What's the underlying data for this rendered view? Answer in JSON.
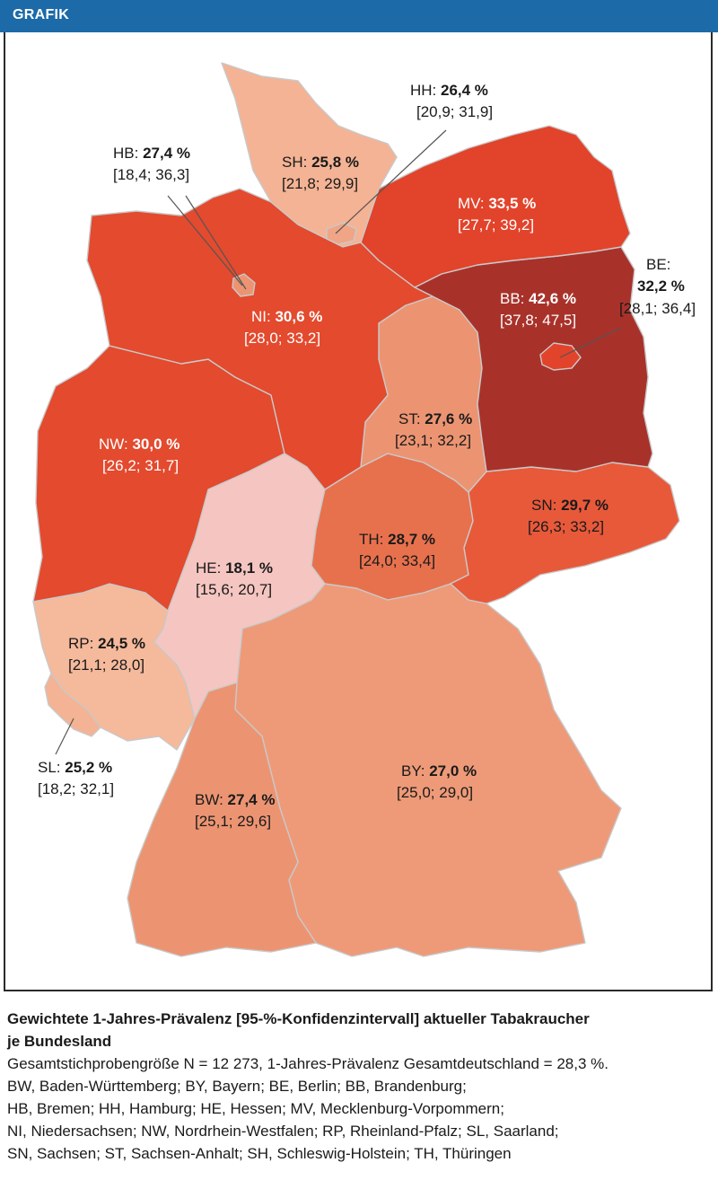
{
  "header": {
    "label": "GRAFIK"
  },
  "colors": {
    "header": "#1c6aa8",
    "scale_lightest": "#f5c6c1",
    "scale_light": "#f4b394",
    "scale_mid": "#ec9472",
    "scale_midhigh": "#e8714d",
    "scale_high": "#e34a2e",
    "scale_highest": "#a8322a"
  },
  "regions": [
    {
      "code": "SH",
      "prefix": "SH: ",
      "value": "25,8 %",
      "ci": "[21,8; 29,9]",
      "color": "#f4b394",
      "text_color": "#1a1a1a"
    },
    {
      "code": "HH",
      "prefix": "HH: ",
      "value": "26,4 %",
      "ci": "[20,9; 31,9]",
      "color": "#f0a586",
      "text_color": "#1a1a1a"
    },
    {
      "code": "MV",
      "prefix": "MV: ",
      "value": "33,5 %",
      "ci": "[27,7; 39,2]",
      "color": "#e2432b",
      "text_color": "#ffffff"
    },
    {
      "code": "HB",
      "prefix": "HB: ",
      "value": "27,4 %",
      "ci": "[18,4; 36,3]",
      "color": "#ec9472",
      "text_color": "#1a1a1a"
    },
    {
      "code": "NI",
      "prefix": "NI: ",
      "value": "30,6 %",
      "ci": "[28,0; 33,2]",
      "color": "#e34a2e",
      "text_color": "#ffffff"
    },
    {
      "code": "BB",
      "prefix": "BB: ",
      "value": "42,6 %",
      "ci": "[37,8; 47,5]",
      "color": "#a8322a",
      "text_color": "#ffffff"
    },
    {
      "code": "BE",
      "prefix": "BE:",
      "value": "32,2 %",
      "ci": "[28,1; 36,4]",
      "color": "#e2432b",
      "text_color": "#1a1a1a"
    },
    {
      "code": "ST",
      "prefix": "ST: ",
      "value": "27,6 %",
      "ci": "[23,1; 32,2]",
      "color": "#ec9472",
      "text_color": "#1a1a1a"
    },
    {
      "code": "NW",
      "prefix": "NW: ",
      "value": "30,0 %",
      "ci": "[26,2; 31,7]",
      "color": "#e34a2e",
      "text_color": "#ffffff"
    },
    {
      "code": "SN",
      "prefix": "SN: ",
      "value": "29,7 %",
      "ci": "[26,3; 33,2]",
      "color": "#e8593a",
      "text_color": "#1a1a1a"
    },
    {
      "code": "TH",
      "prefix": "TH: ",
      "value": "28,7 %",
      "ci": "[24,0; 33,4]",
      "color": "#e8714d",
      "text_color": "#1a1a1a"
    },
    {
      "code": "HE",
      "prefix": "HE: ",
      "value": "18,1 %",
      "ci": "[15,6; 20,7]",
      "color": "#f5c6c1",
      "text_color": "#1a1a1a"
    },
    {
      "code": "RP",
      "prefix": "RP: ",
      "value": "24,5 %",
      "ci": "[21,1; 28,0]",
      "color": "#f5b99b",
      "text_color": "#1a1a1a"
    },
    {
      "code": "SL",
      "prefix": "SL: ",
      "value": "25,2 %",
      "ci": "[18,2; 32,1]",
      "color": "#f4b394",
      "text_color": "#1a1a1a"
    },
    {
      "code": "BW",
      "prefix": "BW: ",
      "value": "27,4 %",
      "ci": "[25,1; 29,6]",
      "color": "#ec9472",
      "text_color": "#1a1a1a"
    },
    {
      "code": "BY",
      "prefix": "BY: ",
      "value": "27,0 %",
      "ci": "[25,0; 29,0]",
      "color": "#ee9a78",
      "text_color": "#1a1a1a"
    }
  ],
  "caption": {
    "title_line1": "Gewichtete 1-Jahres-Prävalenz [95-%-Konfidenzintervall] aktueller Tabakraucher",
    "title_line2": "je Bundesland",
    "lines": [
      "Gesamtstichprobengröße N = 12 273, 1-Jahres-Prävalenz Gesamtdeutschland = 28,3 %.",
      "BW, Baden-Württemberg; BY, Bayern; BE, Berlin; BB, Brandenburg;",
      "HB, Bremen; HH, Hamburg; HE, Hessen; MV, Mecklenburg-Vorpommern;",
      "NI, Niedersachsen; NW, Nordrhein-Westfalen; RP, Rheinland-Pfalz; SL, Saarland;",
      "SN, Sachsen; ST, Sachsen-Anhalt; SH, Schleswig-Holstein; TH, Thüringen"
    ]
  }
}
